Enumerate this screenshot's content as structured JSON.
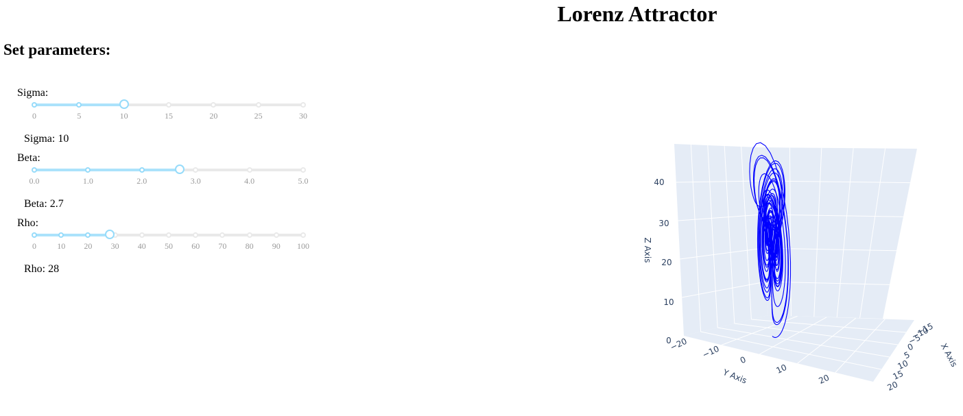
{
  "title": "Lorenz Attractor",
  "controls_heading": "Set parameters:",
  "sliders": [
    {
      "id": "sigma",
      "label": "Sigma:",
      "min": 0,
      "max": 30,
      "value": 10,
      "marks": [
        "0",
        "5",
        "10",
        "15",
        "20",
        "25",
        "30"
      ],
      "mark_values": [
        0,
        5,
        10,
        15,
        20,
        25,
        30
      ],
      "readout": "Sigma: 10"
    },
    {
      "id": "beta",
      "label": "Beta:",
      "min": 0,
      "max": 5,
      "value": 2.7,
      "marks": [
        "0.0",
        "1.0",
        "2.0",
        "3.0",
        "4.0",
        "5.0"
      ],
      "mark_values": [
        0,
        1,
        2,
        3,
        4,
        5
      ],
      "readout": "Beta: 2.7"
    },
    {
      "id": "rho",
      "label": "Rho:",
      "min": 0,
      "max": 100,
      "value": 28,
      "marks": [
        "0",
        "10",
        "20",
        "30",
        "40",
        "50",
        "60",
        "70",
        "80",
        "90",
        "100"
      ],
      "mark_values": [
        0,
        10,
        20,
        30,
        40,
        50,
        60,
        70,
        80,
        90,
        100
      ],
      "readout": "Rho: 28"
    }
  ],
  "colors": {
    "slider_track": "#abe2fb",
    "slider_handle": "#96dbfa",
    "slider_rail": "#e9e9e9",
    "plot_background": "#e5ecf6",
    "trajectory": "#0000ff",
    "axis_text": "#2a3f5f"
  },
  "chart_data": {
    "type": "line3d",
    "series": [
      {
        "x": [],
        "y": [],
        "z": [],
        "color": "#0000ff"
      }
    ],
    "xaxis": {
      "title": "X Axis",
      "ticks": [
        "20",
        "15",
        "10",
        "5",
        "0",
        "−5",
        "−10",
        "−15"
      ]
    },
    "yaxis": {
      "title": "Y Axis",
      "ticks": [
        "−20",
        "−10",
        "0",
        "10",
        "20"
      ]
    },
    "zaxis": {
      "title": "Z Axis",
      "ticks": [
        "0",
        "10",
        "20",
        "30",
        "40"
      ]
    },
    "zlim": [
      0,
      48
    ],
    "grid": true
  }
}
